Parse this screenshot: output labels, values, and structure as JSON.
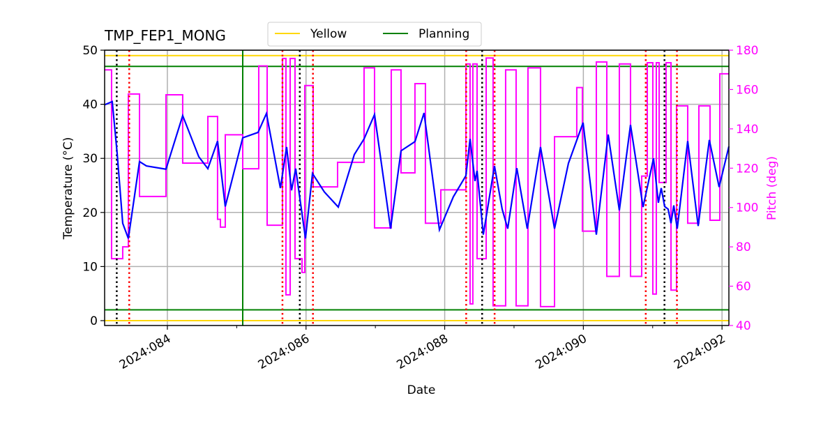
{
  "chart_data": {
    "type": "line",
    "title": "TMP_FEP1_MONG",
    "xlabel": "Date",
    "ylabel": "Temperature ($^\\circ$C)",
    "ylabel_display": "Temperature (°C)",
    "y2label": "Pitch (deg)",
    "xlim": [
      83.095,
      92.099
    ],
    "ylim": [
      -0.9,
      50
    ],
    "y2lim": [
      40,
      180
    ],
    "grid": true,
    "legend_placement": "top-center",
    "x_ticks": [
      {
        "v": 84,
        "label": "2024:084"
      },
      {
        "v": 86,
        "label": "2024:086"
      },
      {
        "v": 88,
        "label": "2024:088"
      },
      {
        "v": 90,
        "label": "2024:090"
      },
      {
        "v": 92,
        "label": "2024:092"
      }
    ],
    "x_minor_ticks": [
      85,
      87,
      89,
      91
    ],
    "y_ticks": [
      0,
      10,
      20,
      30,
      40,
      50
    ],
    "y2_ticks": [
      40,
      60,
      80,
      100,
      120,
      140,
      160,
      180
    ],
    "colors": {
      "temp": "#0000ff",
      "pitch": "#ff00ff",
      "yellow": "#ffd700",
      "planning": "#008000",
      "red_marker": "#ff0000",
      "black_marker": "#000000",
      "grid": "#b0b0b0"
    },
    "legend": [
      {
        "label": "Yellow",
        "color": "#ffd700"
      },
      {
        "label": "Planning",
        "color": "#008000"
      }
    ],
    "limits": {
      "yellow": [
        49,
        0
      ],
      "planning": [
        47,
        2
      ]
    },
    "planning_vline": 85.087,
    "black_vlines": [
      83.27,
      85.91,
      88.54,
      91.17
    ],
    "red_vlines": [
      83.45,
      85.66,
      86.1,
      88.31,
      88.72,
      90.9,
      91.35
    ],
    "temperature": [
      [
        83.095,
        39.9
      ],
      [
        83.205,
        40.5
      ],
      [
        83.276,
        30.9
      ],
      [
        83.356,
        18.0
      ],
      [
        83.437,
        15.2
      ],
      [
        83.598,
        29.4
      ],
      [
        83.698,
        28.6
      ],
      [
        83.98,
        28.0
      ],
      [
        84.221,
        37.9
      ],
      [
        84.453,
        30.3
      ],
      [
        84.584,
        28.1
      ],
      [
        84.724,
        33.2
      ],
      [
        84.835,
        21.1
      ],
      [
        85.087,
        33.8
      ],
      [
        85.308,
        34.8
      ],
      [
        85.429,
        38.3
      ],
      [
        85.63,
        24.5
      ],
      [
        85.72,
        32.1
      ],
      [
        85.791,
        24.1
      ],
      [
        85.851,
        28.1
      ],
      [
        85.992,
        15.2
      ],
      [
        86.093,
        27.2
      ],
      [
        86.264,
        23.8
      ],
      [
        86.465,
        21.0
      ],
      [
        86.696,
        30.7
      ],
      [
        86.837,
        33.6
      ],
      [
        86.988,
        38.1
      ],
      [
        87.219,
        17.0
      ],
      [
        87.37,
        31.4
      ],
      [
        87.571,
        33.1
      ],
      [
        87.702,
        38.4
      ],
      [
        87.924,
        16.8
      ],
      [
        88.125,
        22.9
      ],
      [
        88.306,
        26.8
      ],
      [
        88.366,
        33.6
      ],
      [
        88.437,
        25.8
      ],
      [
        88.467,
        27.7
      ],
      [
        88.557,
        15.9
      ],
      [
        88.718,
        28.6
      ],
      [
        88.829,
        20.6
      ],
      [
        88.909,
        17.0
      ],
      [
        89.04,
        28.2
      ],
      [
        89.191,
        17.0
      ],
      [
        89.382,
        32.1
      ],
      [
        89.584,
        17.0
      ],
      [
        89.785,
        29.1
      ],
      [
        89.996,
        36.6
      ],
      [
        90.187,
        15.9
      ],
      [
        90.358,
        34.4
      ],
      [
        90.519,
        20.4
      ],
      [
        90.68,
        36.2
      ],
      [
        90.861,
        21.0
      ],
      [
        91.012,
        30.0
      ],
      [
        91.082,
        21.8
      ],
      [
        91.123,
        24.5
      ],
      [
        91.173,
        21.1
      ],
      [
        91.223,
        20.6
      ],
      [
        91.264,
        18.0
      ],
      [
        91.304,
        21.3
      ],
      [
        91.354,
        17.0
      ],
      [
        91.505,
        33.2
      ],
      [
        91.656,
        17.5
      ],
      [
        91.817,
        33.4
      ],
      [
        91.958,
        24.7
      ],
      [
        92.099,
        32.2
      ]
    ],
    "pitch_steps": [
      [
        83.095,
        170
      ],
      [
        83.195,
        74
      ],
      [
        83.356,
        80
      ],
      [
        83.437,
        157.7
      ],
      [
        83.598,
        105.6
      ],
      [
        83.98,
        157.3
      ],
      [
        84.221,
        122.6
      ],
      [
        84.584,
        146.3
      ],
      [
        84.724,
        94
      ],
      [
        84.765,
        90
      ],
      [
        84.835,
        137
      ],
      [
        85.087,
        119.7
      ],
      [
        85.318,
        172
      ],
      [
        85.439,
        91
      ],
      [
        85.66,
        175.8
      ],
      [
        85.71,
        55.6
      ],
      [
        85.771,
        175.8
      ],
      [
        85.841,
        74
      ],
      [
        85.942,
        67
      ],
      [
        85.982,
        162
      ],
      [
        86.103,
        110.5
      ],
      [
        86.455,
        123
      ],
      [
        86.837,
        171
      ],
      [
        86.988,
        89.6
      ],
      [
        87.229,
        170
      ],
      [
        87.37,
        117.6
      ],
      [
        87.571,
        163
      ],
      [
        87.722,
        92
      ],
      [
        87.944,
        109
      ],
      [
        88.306,
        173
      ],
      [
        88.366,
        51
      ],
      [
        88.406,
        173
      ],
      [
        88.467,
        74
      ],
      [
        88.598,
        176
      ],
      [
        88.698,
        50
      ],
      [
        88.879,
        170
      ],
      [
        89.03,
        50
      ],
      [
        89.201,
        171
      ],
      [
        89.382,
        49.6
      ],
      [
        89.584,
        136
      ],
      [
        89.905,
        161
      ],
      [
        89.986,
        88
      ],
      [
        90.187,
        174
      ],
      [
        90.338,
        65
      ],
      [
        90.519,
        173
      ],
      [
        90.68,
        65
      ],
      [
        90.841,
        116
      ],
      [
        90.922,
        173.6
      ],
      [
        91.002,
        56
      ],
      [
        91.052,
        173.6
      ],
      [
        91.093,
        112.7
      ],
      [
        91.193,
        173.6
      ],
      [
        91.264,
        58
      ],
      [
        91.344,
        151.7
      ],
      [
        91.505,
        92
      ],
      [
        91.666,
        151.7
      ],
      [
        91.827,
        93.5
      ],
      [
        91.968,
        168
      ],
      [
        92.099,
        168
      ]
    ]
  }
}
